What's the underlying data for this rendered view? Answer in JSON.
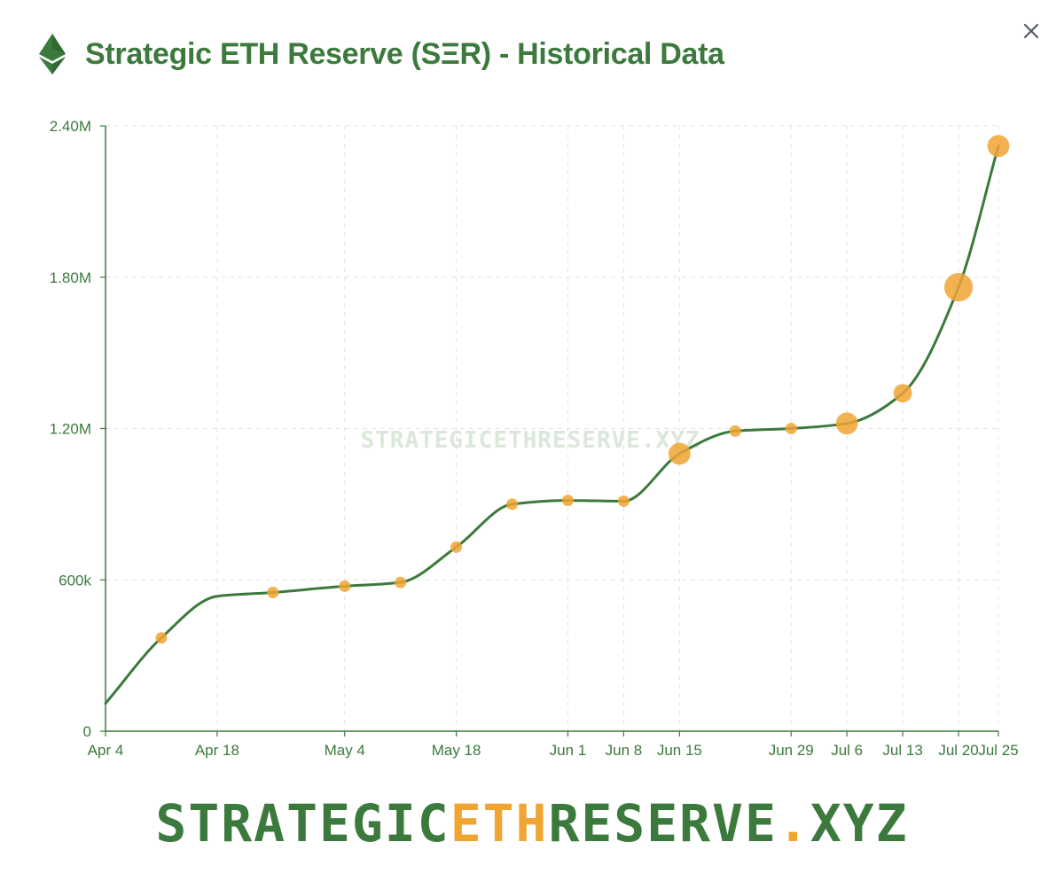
{
  "header": {
    "title": "Strategic ETH Reserve (SΞR) - Historical Data",
    "icon": "ethereum-icon"
  },
  "close_button": {
    "icon": "close-icon"
  },
  "colors": {
    "line": "#3b7a3c",
    "marker": "#f0a432",
    "grid": "#e3e3e3",
    "axis_text": "#3b7a3c",
    "watermark": "#d9e8d9",
    "footer_green": "#3b7a3c",
    "footer_orange": "#f0a432"
  },
  "watermark": "STRATEGICETHRESERVE.XYZ",
  "footer": {
    "part1": "STRATEGIC",
    "part2": "ETH",
    "part3": "RESERVE",
    "part4": ".",
    "part5": "XYZ"
  },
  "chart_data": {
    "type": "line",
    "title": "",
    "xlabel": "",
    "ylabel": "",
    "ylim": [
      0,
      2400000
    ],
    "yticks": [
      {
        "value": 0,
        "label": "0"
      },
      {
        "value": 600000,
        "label": "600k"
      },
      {
        "value": 1200000,
        "label": "1.20M"
      },
      {
        "value": 1800000,
        "label": "1.80M"
      },
      {
        "value": 2400000,
        "label": "2.40M"
      }
    ],
    "xlim": [
      "2025-04-04",
      "2025-07-25"
    ],
    "xticks": [
      {
        "date": "2025-04-04",
        "label": "Apr 4"
      },
      {
        "date": "2025-04-18",
        "label": "Apr 18"
      },
      {
        "date": "2025-05-04",
        "label": "May 4"
      },
      {
        "date": "2025-05-18",
        "label": "May 18"
      },
      {
        "date": "2025-06-01",
        "label": "Jun 1"
      },
      {
        "date": "2025-06-08",
        "label": "Jun 8"
      },
      {
        "date": "2025-06-15",
        "label": "Jun 15"
      },
      {
        "date": "2025-06-29",
        "label": "Jun 29"
      },
      {
        "date": "2025-07-06",
        "label": "Jul 6"
      },
      {
        "date": "2025-07-13",
        "label": "Jul 13"
      },
      {
        "date": "2025-07-20",
        "label": "Jul 20"
      },
      {
        "date": "2025-07-25",
        "label": "Jul 25"
      }
    ],
    "grid": true,
    "series": [
      {
        "points": [
          {
            "date": "2025-04-04",
            "value": 110000
          },
          {
            "date": "2025-04-11",
            "value": 370000,
            "marker": 1
          },
          {
            "date": "2025-04-18",
            "value": 535000
          },
          {
            "date": "2025-04-25",
            "value": 550000,
            "marker": 1
          },
          {
            "date": "2025-05-04",
            "value": 575000,
            "marker": 1
          },
          {
            "date": "2025-05-11",
            "value": 590000,
            "marker": 1
          },
          {
            "date": "2025-05-18",
            "value": 730000,
            "marker": 1
          },
          {
            "date": "2025-05-25",
            "value": 900000,
            "marker": 1
          },
          {
            "date": "2025-06-01",
            "value": 915000,
            "marker": 1
          },
          {
            "date": "2025-06-08",
            "value": 912000,
            "marker": 1
          },
          {
            "date": "2025-06-15",
            "value": 1100000,
            "marker": 2
          },
          {
            "date": "2025-06-22",
            "value": 1190000,
            "marker": 1
          },
          {
            "date": "2025-06-29",
            "value": 1200000,
            "marker": 1
          },
          {
            "date": "2025-07-06",
            "value": 1220000,
            "marker": 2
          },
          {
            "date": "2025-07-13",
            "value": 1340000,
            "marker": 1.5
          },
          {
            "date": "2025-07-20",
            "value": 1760000,
            "marker": 3
          },
          {
            "date": "2025-07-25",
            "value": 2320000,
            "marker": 2
          }
        ]
      }
    ]
  }
}
